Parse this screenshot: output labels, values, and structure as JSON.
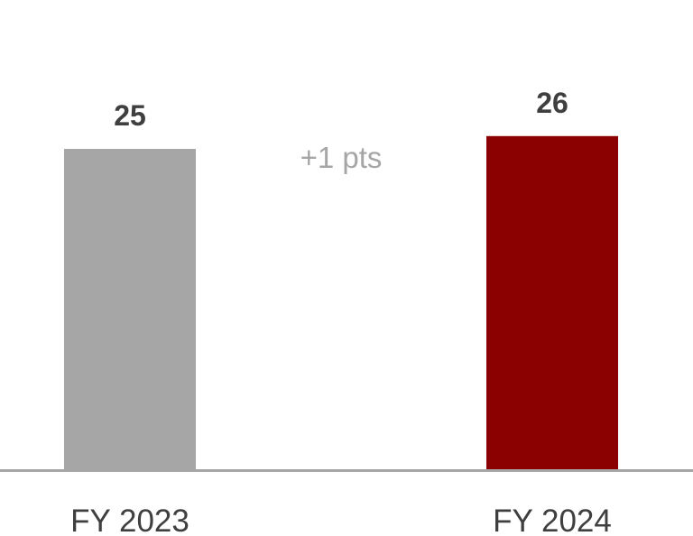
{
  "chart_data": {
    "type": "bar",
    "categories": [
      "FY 2023",
      "FY 2024"
    ],
    "values": [
      25,
      26
    ],
    "value_labels": [
      "25",
      "26"
    ],
    "ylim": [
      0,
      26
    ],
    "grid": false,
    "legend": "none",
    "annotation": "+1 pts",
    "colors": {
      "bars": [
        "#a6a6a6",
        "#8b0000"
      ],
      "axis": "#a6a6a6",
      "text": "#3f3f3f",
      "annotation": "#a6a6a6"
    }
  }
}
